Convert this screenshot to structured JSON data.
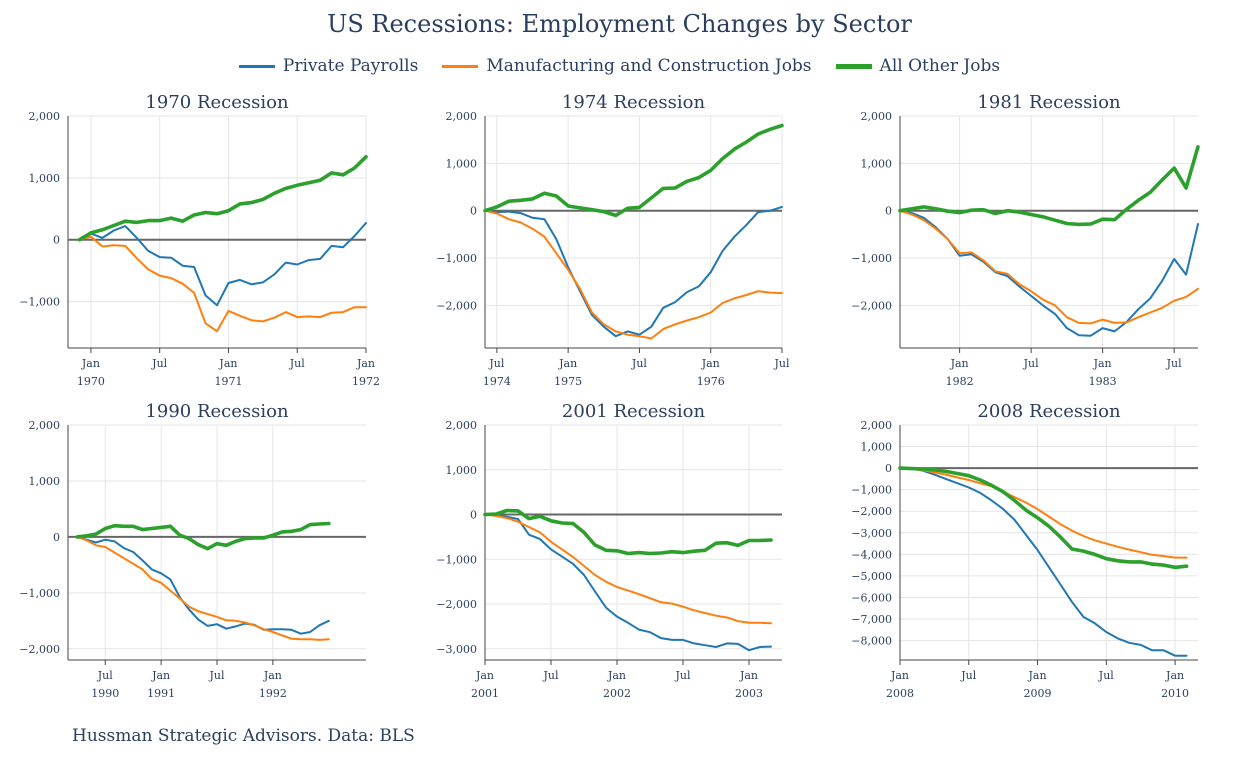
{
  "title": "US Recessions: Employment Changes by Sector",
  "source": "Hussman Strategic Advisors. Data: BLS",
  "legend": [
    {
      "name": "Private Payrolls",
      "color": "#1f77b4"
    },
    {
      "name": "Manufacturing and Construction Jobs",
      "color": "#ff7f0e"
    },
    {
      "name": "All Other Jobs",
      "color": "#2ca02c"
    }
  ],
  "chart_data": [
    {
      "type": "line",
      "title": "1970 Recession",
      "xlim": [
        -2,
        24
      ],
      "ylim": [
        -1750,
        2000
      ],
      "yticks": [
        2000,
        1000,
        0,
        -1000
      ],
      "ytick_labels": [
        "2,000",
        "1,000",
        "0",
        "−1,000"
      ],
      "xticks": [
        {
          "x": 0,
          "label": "Jan",
          "label2": "1970"
        },
        {
          "x": 6,
          "label": "Jul",
          "label2": ""
        },
        {
          "x": 12,
          "label": "Jan",
          "label2": "1971"
        },
        {
          "x": 18,
          "label": "Jul",
          "label2": ""
        },
        {
          "x": 24,
          "label": "Jan",
          "label2": "1972"
        }
      ],
      "x": [
        -1,
        0,
        1,
        2,
        3,
        4,
        5,
        6,
        7,
        8,
        9,
        10,
        11,
        12,
        13,
        14,
        15,
        16,
        17,
        18,
        19,
        20,
        21,
        22,
        23,
        24
      ],
      "series": [
        {
          "name": "Private Payrolls",
          "values": [
            0,
            100,
            30,
            150,
            220,
            30,
            -180,
            -280,
            -290,
            -420,
            -440,
            -900,
            -1060,
            -700,
            -650,
            -720,
            -690,
            -560,
            -370,
            -400,
            -330,
            -310,
            -100,
            -120,
            60,
            270
          ]
        },
        {
          "name": "Manufacturing and Construction Jobs",
          "values": [
            0,
            50,
            -110,
            -90,
            -100,
            -300,
            -480,
            -580,
            -620,
            -710,
            -860,
            -1350,
            -1480,
            -1150,
            -1230,
            -1300,
            -1320,
            -1260,
            -1170,
            -1250,
            -1240,
            -1250,
            -1180,
            -1170,
            -1090,
            -1090
          ]
        },
        {
          "name": "All Other Jobs",
          "values": [
            0,
            110,
            160,
            230,
            300,
            280,
            310,
            310,
            350,
            300,
            400,
            440,
            420,
            470,
            580,
            600,
            650,
            750,
            830,
            880,
            920,
            960,
            1080,
            1050,
            1160,
            1340
          ]
        }
      ]
    },
    {
      "type": "line",
      "title": "1974 Recession",
      "xlim": [
        -1,
        24
      ],
      "ylim": [
        -2900,
        2000
      ],
      "yticks": [
        2000,
        1000,
        0,
        -1000,
        -2000
      ],
      "ytick_labels": [
        "2,000",
        "1,000",
        "0",
        "−1,000",
        "−2,000"
      ],
      "xticks": [
        {
          "x": 0,
          "label": "Jul",
          "label2": "1974"
        },
        {
          "x": 6,
          "label": "Jan",
          "label2": "1975"
        },
        {
          "x": 12,
          "label": "Jul",
          "label2": ""
        },
        {
          "x": 18,
          "label": "Jan",
          "label2": "1976"
        },
        {
          "x": 24,
          "label": "Jul",
          "label2": ""
        }
      ],
      "x": [
        -1,
        0,
        1,
        2,
        3,
        4,
        5,
        6,
        7,
        8,
        9,
        10,
        11,
        12,
        13,
        14,
        15,
        16,
        17,
        18,
        19,
        20,
        21,
        22,
        23,
        24
      ],
      "series": [
        {
          "name": "Private Payrolls",
          "values": [
            0,
            -30,
            -20,
            -50,
            -150,
            -180,
            -600,
            -1200,
            -1700,
            -2200,
            -2450,
            -2650,
            -2550,
            -2620,
            -2450,
            -2050,
            -1930,
            -1720,
            -1600,
            -1300,
            -850,
            -550,
            -300,
            -30,
            0,
            80
          ]
        },
        {
          "name": "Manufacturing and Construction Jobs",
          "values": [
            0,
            -60,
            -180,
            -250,
            -380,
            -550,
            -900,
            -1250,
            -1650,
            -2150,
            -2400,
            -2550,
            -2620,
            -2650,
            -2700,
            -2500,
            -2400,
            -2320,
            -2250,
            -2150,
            -1950,
            -1850,
            -1780,
            -1700,
            -1730,
            -1740
          ]
        },
        {
          "name": "All Other Jobs",
          "values": [
            0,
            80,
            200,
            220,
            250,
            370,
            310,
            100,
            60,
            20,
            -20,
            -100,
            50,
            70,
            270,
            470,
            480,
            620,
            700,
            850,
            1100,
            1300,
            1450,
            1620,
            1720,
            1800
          ]
        }
      ]
    },
    {
      "type": "line",
      "title": "1981 Recession",
      "xlim": [
        -1,
        24
      ],
      "ylim": [
        -2900,
        2000
      ],
      "yticks": [
        2000,
        1000,
        0,
        -1000,
        -2000
      ],
      "ytick_labels": [
        "2,000",
        "1,000",
        "0",
        "−1,000",
        "−2,000"
      ],
      "xticks": [
        {
          "x": 4,
          "label": "Jan",
          "label2": "1982"
        },
        {
          "x": 10,
          "label": "Jul",
          "label2": ""
        },
        {
          "x": 16,
          "label": "Jan",
          "label2": "1983"
        },
        {
          "x": 22,
          "label": "Jul",
          "label2": ""
        }
      ],
      "x": [
        -1,
        0,
        1,
        2,
        3,
        4,
        5,
        6,
        7,
        8,
        9,
        10,
        11,
        12,
        13,
        14,
        15,
        16,
        17,
        18,
        19,
        20,
        21,
        22,
        23,
        24
      ],
      "series": [
        {
          "name": "Private Payrolls",
          "values": [
            0,
            -50,
            -150,
            -350,
            -600,
            -950,
            -920,
            -1080,
            -1300,
            -1380,
            -1600,
            -1800,
            -2000,
            -2180,
            -2480,
            -2630,
            -2640,
            -2480,
            -2550,
            -2350,
            -2080,
            -1850,
            -1480,
            -1020,
            -1350,
            -280
          ]
        },
        {
          "name": "Manufacturing and Construction Jobs",
          "values": [
            0,
            -80,
            -200,
            -380,
            -600,
            -900,
            -880,
            -1050,
            -1280,
            -1330,
            -1550,
            -1700,
            -1880,
            -2000,
            -2250,
            -2370,
            -2380,
            -2300,
            -2370,
            -2360,
            -2250,
            -2150,
            -2050,
            -1900,
            -1820,
            -1650
          ]
        },
        {
          "name": "All Other Jobs",
          "values": [
            0,
            40,
            80,
            40,
            -10,
            -40,
            10,
            20,
            -60,
            0,
            -30,
            -80,
            -130,
            -200,
            -270,
            -290,
            -280,
            -180,
            -190,
            30,
            220,
            390,
            650,
            900,
            480,
            1350
          ]
        }
      ]
    },
    {
      "type": "line",
      "title": "1990 Recession",
      "xlim": [
        -4,
        28
      ],
      "ylim": [
        -2200,
        2000
      ],
      "yticks": [
        2000,
        1000,
        0,
        -1000,
        -2000
      ],
      "ytick_labels": [
        "2,000",
        "1,000",
        "0",
        "−1,000",
        "−2,000"
      ],
      "xticks": [
        {
          "x": 0,
          "label": "Jul",
          "label2": "1990"
        },
        {
          "x": 6,
          "label": "Jan",
          "label2": "1991"
        },
        {
          "x": 12,
          "label": "Jul",
          "label2": ""
        },
        {
          "x": 18,
          "label": "Jan",
          "label2": "1992"
        }
      ],
      "x": [
        -3,
        -2,
        -1,
        0,
        1,
        2,
        3,
        4,
        5,
        6,
        7,
        8,
        9,
        10,
        11,
        12,
        13,
        14,
        15,
        16,
        17,
        18,
        19,
        20,
        21,
        22,
        23,
        24
      ],
      "series": [
        {
          "name": "Private Payrolls",
          "values": [
            0,
            -50,
            -100,
            -50,
            -80,
            -200,
            -270,
            -420,
            -580,
            -650,
            -760,
            -1080,
            -1300,
            -1480,
            -1590,
            -1560,
            -1640,
            -1600,
            -1550,
            -1570,
            -1660,
            -1650,
            -1650,
            -1660,
            -1730,
            -1700,
            -1580,
            -1500
          ]
        },
        {
          "name": "Manufacturing and Construction Jobs",
          "values": [
            0,
            -60,
            -150,
            -180,
            -280,
            -380,
            -480,
            -580,
            -750,
            -820,
            -960,
            -1100,
            -1250,
            -1330,
            -1380,
            -1430,
            -1490,
            -1500,
            -1530,
            -1580,
            -1650,
            -1700,
            -1760,
            -1820,
            -1830,
            -1830,
            -1840,
            -1830
          ]
        },
        {
          "name": "All Other Jobs",
          "values": [
            0,
            20,
            50,
            150,
            200,
            190,
            190,
            130,
            150,
            170,
            190,
            30,
            -30,
            -140,
            -210,
            -120,
            -150,
            -80,
            -30,
            -20,
            -20,
            30,
            90,
            100,
            130,
            220,
            230,
            240
          ]
        }
      ]
    },
    {
      "type": "line",
      "title": "2001 Recession",
      "xlim": [
        0,
        27
      ],
      "ylim": [
        -3250,
        2000
      ],
      "yticks": [
        2000,
        1000,
        0,
        -1000,
        -2000,
        -3000
      ],
      "ytick_labels": [
        "2,000",
        "1,000",
        "0",
        "−1,000",
        "−2,000",
        "−3,000"
      ],
      "xticks": [
        {
          "x": 0,
          "label": "Jan",
          "label2": "2001"
        },
        {
          "x": 6,
          "label": "Jul",
          "label2": ""
        },
        {
          "x": 12,
          "label": "Jan",
          "label2": "2002"
        },
        {
          "x": 18,
          "label": "Jul",
          "label2": ""
        },
        {
          "x": 24,
          "label": "Jan",
          "label2": "2003"
        }
      ],
      "x": [
        0,
        1,
        2,
        3,
        4,
        5,
        6,
        7,
        8,
        9,
        10,
        11,
        12,
        13,
        14,
        15,
        16,
        17,
        18,
        19,
        20,
        21,
        22,
        23,
        24,
        25,
        26
      ],
      "series": [
        {
          "name": "Private Payrolls",
          "values": [
            0,
            -10,
            -50,
            -100,
            -450,
            -550,
            -780,
            -940,
            -1100,
            -1350,
            -1720,
            -2080,
            -2280,
            -2420,
            -2570,
            -2630,
            -2760,
            -2800,
            -2800,
            -2880,
            -2920,
            -2960,
            -2880,
            -2890,
            -3030,
            -2960,
            -2950
          ]
        },
        {
          "name": "Manufacturing and Construction Jobs",
          "values": [
            0,
            -30,
            -80,
            -160,
            -280,
            -400,
            -610,
            -780,
            -950,
            -1150,
            -1350,
            -1500,
            -1620,
            -1700,
            -1780,
            -1870,
            -1960,
            -1990,
            -2060,
            -2140,
            -2200,
            -2260,
            -2300,
            -2380,
            -2420,
            -2420,
            -2430
          ]
        },
        {
          "name": "All Other Jobs",
          "values": [
            0,
            10,
            90,
            80,
            -90,
            -40,
            -140,
            -190,
            -200,
            -400,
            -680,
            -800,
            -810,
            -870,
            -850,
            -870,
            -860,
            -830,
            -850,
            -820,
            -800,
            -640,
            -630,
            -690,
            -580,
            -580,
            -570
          ]
        }
      ]
    },
    {
      "type": "line",
      "title": "2008 Recession",
      "xlim": [
        0,
        26
      ],
      "ylim": [
        -8900,
        2000
      ],
      "yticks": [
        2000,
        1000,
        0,
        -1000,
        -2000,
        -3000,
        -4000,
        -5000,
        -6000,
        -7000,
        -8000
      ],
      "ytick_labels": [
        "2,000",
        "1,000",
        "0",
        "−1,000",
        "−2,000",
        "−3,000",
        "−4,000",
        "−5,000",
        "−6,000",
        "−7,000",
        "−8,000"
      ],
      "xticks": [
        {
          "x": 0,
          "label": "Jan",
          "label2": "2008"
        },
        {
          "x": 6,
          "label": "Jul",
          "label2": ""
        },
        {
          "x": 12,
          "label": "Jan",
          "label2": "2009"
        },
        {
          "x": 18,
          "label": "Jul",
          "label2": ""
        },
        {
          "x": 24,
          "label": "Jan",
          "label2": "2010"
        }
      ],
      "x": [
        0,
        1,
        2,
        3,
        4,
        5,
        6,
        7,
        8,
        9,
        10,
        11,
        12,
        13,
        14,
        15,
        16,
        17,
        18,
        19,
        20,
        21,
        22,
        23,
        24,
        25
      ],
      "series": [
        {
          "name": "Private Payrolls",
          "values": [
            0,
            -30,
            -120,
            -300,
            -500,
            -700,
            -900,
            -1150,
            -1500,
            -1900,
            -2400,
            -3100,
            -3800,
            -4600,
            -5400,
            -6200,
            -6900,
            -7200,
            -7600,
            -7900,
            -8100,
            -8200,
            -8450,
            -8450,
            -8700,
            -8700
          ]
        },
        {
          "name": "Manufacturing and Construction Jobs",
          "values": [
            0,
            -30,
            -100,
            -200,
            -300,
            -430,
            -550,
            -700,
            -850,
            -1100,
            -1350,
            -1600,
            -1900,
            -2250,
            -2600,
            -2900,
            -3150,
            -3350,
            -3500,
            -3650,
            -3780,
            -3900,
            -4020,
            -4080,
            -4150,
            -4150
          ]
        },
        {
          "name": "All Other Jobs",
          "values": [
            0,
            -20,
            -40,
            -80,
            -150,
            -250,
            -350,
            -550,
            -800,
            -1100,
            -1500,
            -1950,
            -2300,
            -2700,
            -3200,
            -3750,
            -3850,
            -4000,
            -4200,
            -4300,
            -4350,
            -4350,
            -4450,
            -4500,
            -4600,
            -4550
          ]
        }
      ]
    }
  ]
}
